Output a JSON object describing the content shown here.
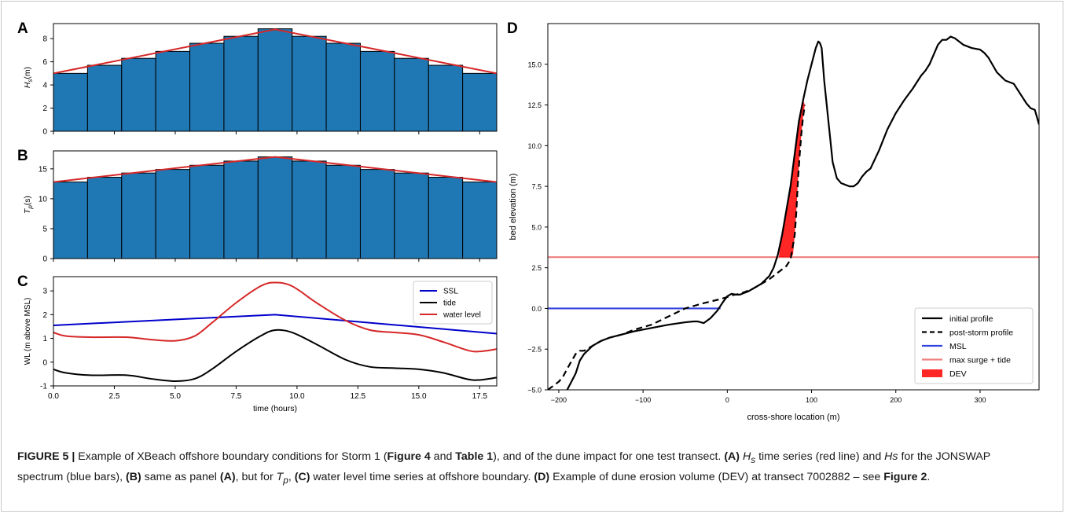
{
  "panel_letters": [
    "A",
    "B",
    "C",
    "D"
  ],
  "caption": {
    "figure_label": "FIGURE 5 |",
    "p1": " Example of XBeach offshore boundary conditions for Storm 1 (",
    "ref_fig4": "Figure 4",
    "p2": " and ",
    "ref_table1": "Table 1",
    "p3": "), and of the dune impact for one test transect. ",
    "lbl_a": "(A)",
    "hs_sym": "H",
    "hs_sub": "s",
    "p4": " time series (red line) and ",
    "hs_italic": "Hs",
    "p5": " for the JONSWAP spectrum (blue bars), ",
    "lbl_b": "(B)",
    "p6": " same as panel ",
    "lbl_a2": "(A)",
    "p7": ", but for ",
    "tp_sym": "T",
    "tp_sub": "p",
    "p8": ", ",
    "lbl_c": "(C)",
    "p9": " water level time series at offshore boundary. ",
    "lbl_d": "(D)",
    "p10": " Example of dune erosion volume (DEV) at transect 7002882 – see ",
    "ref_fig2": "Figure 2",
    "p11": "."
  },
  "chart_data": [
    {
      "panel": "A",
      "type": "bar",
      "ylabel_main": "H",
      "ylabel_sub": "s",
      "ylabel_unit": "(m)",
      "bar_values": [
        5.0,
        5.7,
        6.3,
        6.9,
        7.6,
        8.2,
        8.85,
        8.2,
        7.6,
        6.9,
        6.3,
        5.7,
        5.0
      ],
      "bar_color": "#1f77b4",
      "line_x": [
        0,
        9.1,
        18.2
      ],
      "line_y": [
        5.0,
        8.8,
        5.0
      ],
      "line_color": "#d62728",
      "xlim": [
        0,
        18.2
      ],
      "ylim": [
        0,
        9.3
      ],
      "yticks": [
        0,
        2,
        4,
        6,
        8
      ]
    },
    {
      "panel": "B",
      "type": "bar",
      "ylabel_main": "T",
      "ylabel_sub": "p",
      "ylabel_unit": "(s)",
      "bar_values": [
        12.8,
        13.6,
        14.3,
        14.9,
        15.6,
        16.3,
        17.0,
        16.3,
        15.6,
        14.9,
        14.3,
        13.6,
        12.8
      ],
      "bar_color": "#1f77b4",
      "line_x": [
        0,
        9.1,
        18.2
      ],
      "line_y": [
        12.8,
        17.0,
        12.8
      ],
      "line_color": "#d62728",
      "xlim": [
        0,
        18.2
      ],
      "ylim": [
        0,
        18
      ],
      "yticks": [
        0,
        5,
        10,
        15
      ]
    },
    {
      "panel": "C",
      "type": "line",
      "xlabel": "time (hours)",
      "ylabel": "WL (m above MSL)",
      "xlim": [
        0,
        18.2
      ],
      "ylim": [
        -1.0,
        3.6
      ],
      "xticks": [
        0,
        2.5,
        5,
        7.5,
        10,
        12.5,
        15,
        17.5
      ],
      "xticklabels": [
        "0.0",
        "2.5",
        "5.0",
        "7.5",
        "10.0",
        "12.5",
        "15.0",
        "17.5"
      ],
      "yticks": [
        -1,
        0,
        1,
        2,
        3
      ],
      "legend": "top-right",
      "series": [
        {
          "name": "SSL",
          "color": "#0000cc",
          "x": [
            0,
            9.1,
            18.2
          ],
          "y": [
            1.55,
            2.0,
            1.2
          ]
        },
        {
          "name": "tide",
          "color": "#000000",
          "x": [
            0,
            0.5,
            1.5,
            3.0,
            4.0,
            5.0,
            5.8,
            6.5,
            7.5,
            8.5,
            9.1,
            9.8,
            10.8,
            12.0,
            13.0,
            14.0,
            15.0,
            16.0,
            17.0,
            17.5,
            18.2
          ],
          "y": [
            -0.3,
            -0.45,
            -0.55,
            -0.55,
            -0.7,
            -0.8,
            -0.7,
            -0.3,
            0.45,
            1.1,
            1.35,
            1.25,
            0.75,
            0.1,
            -0.2,
            -0.25,
            -0.3,
            -0.45,
            -0.72,
            -0.75,
            -0.65
          ]
        },
        {
          "name": "water level",
          "color": "#d62728",
          "x": [
            0,
            0.5,
            1.5,
            3.0,
            4.0,
            5.0,
            5.8,
            6.5,
            7.5,
            8.5,
            9.1,
            9.8,
            10.8,
            12.0,
            13.0,
            14.0,
            15.0,
            16.0,
            17.0,
            17.5,
            18.2
          ],
          "y": [
            1.25,
            1.1,
            1.05,
            1.05,
            0.95,
            0.9,
            1.1,
            1.65,
            2.5,
            3.2,
            3.35,
            3.2,
            2.5,
            1.75,
            1.35,
            1.25,
            1.15,
            0.85,
            0.5,
            0.45,
            0.55
          ]
        }
      ]
    },
    {
      "panel": "D",
      "type": "line",
      "xlabel": "cross-shore location (m)",
      "ylabel": "bed elevation (m)",
      "xlim": [
        -213,
        370
      ],
      "ylim": [
        -5.0,
        17.5
      ],
      "xticks": [
        -200,
        -100,
        0,
        100,
        200,
        300
      ],
      "xticklabels": [
        "−200",
        "−100",
        "0",
        "100",
        "200",
        "300"
      ],
      "yticks": [
        -5,
        -2.5,
        0,
        2.5,
        5,
        7.5,
        10,
        12.5,
        15
      ],
      "yticklabels": [
        "−5.0",
        "−2.5",
        "0.0",
        "2.5",
        "5.0",
        "7.5",
        "10.0",
        "12.5",
        "15.0"
      ],
      "legend": "bottom-right",
      "series": [
        {
          "name": "initial profile",
          "color": "#000000",
          "style": "solid",
          "x": [
            -190,
            -180,
            -175,
            -170,
            -160,
            -150,
            -140,
            -125,
            -110,
            -90,
            -70,
            -50,
            -40,
            -35,
            -28,
            -20,
            -12,
            -5,
            0,
            5,
            10,
            15,
            20,
            25,
            30,
            40,
            50,
            55,
            60,
            65,
            70,
            75,
            80,
            85,
            90,
            95,
            100,
            105,
            108,
            110,
            112,
            115,
            120,
            125,
            130,
            135,
            140,
            145,
            150,
            155,
            160,
            165,
            170,
            180,
            190,
            200,
            210,
            220,
            230,
            235,
            240,
            245,
            250,
            255,
            260,
            265,
            270,
            280,
            290,
            300,
            305,
            310,
            320,
            330,
            340,
            350,
            355,
            360,
            365,
            370
          ],
          "y": [
            -5.0,
            -4.0,
            -3.2,
            -2.8,
            -2.3,
            -2.0,
            -1.8,
            -1.6,
            -1.4,
            -1.2,
            -1.0,
            -0.85,
            -0.8,
            -0.8,
            -0.9,
            -0.6,
            -0.15,
            0.4,
            0.75,
            0.9,
            0.85,
            0.85,
            0.95,
            1.05,
            1.2,
            1.5,
            2.0,
            2.5,
            3.3,
            4.5,
            6.0,
            7.5,
            9.5,
            11.5,
            12.8,
            14.0,
            15.0,
            16.0,
            16.4,
            16.3,
            16.0,
            14.0,
            11.5,
            9.0,
            8.0,
            7.7,
            7.6,
            7.5,
            7.5,
            7.7,
            8.1,
            8.4,
            8.6,
            9.7,
            11.0,
            12.0,
            12.8,
            13.5,
            14.3,
            14.6,
            15.0,
            15.6,
            16.2,
            16.5,
            16.5,
            16.7,
            16.6,
            16.2,
            16.0,
            15.9,
            15.7,
            15.4,
            14.5,
            14.0,
            13.8,
            13.0,
            12.6,
            12.3,
            12.2,
            11.3
          ]
        },
        {
          "name": "post-storm profile",
          "color": "#000000",
          "style": "dashed",
          "x": [
            -213,
            -200,
            -195,
            -190,
            -180,
            -175,
            -170,
            -160,
            -150,
            -140,
            -125,
            -110,
            -90,
            -70,
            -50,
            -30,
            -10,
            0,
            5,
            10,
            15,
            20,
            30,
            40,
            50,
            55,
            60,
            65,
            70,
            75,
            80,
            82,
            84,
            86,
            88,
            90,
            92
          ],
          "y": [
            -5.0,
            -4.5,
            -4.2,
            -3.7,
            -2.8,
            -2.6,
            -2.6,
            -2.3,
            -2.0,
            -1.8,
            -1.6,
            -1.3,
            -1.0,
            -0.5,
            0.0,
            0.3,
            0.55,
            0.7,
            0.8,
            0.85,
            0.9,
            1.0,
            1.2,
            1.5,
            1.8,
            2.0,
            2.2,
            2.4,
            2.6,
            3.0,
            4.5,
            6.0,
            8.0,
            9.5,
            10.8,
            11.8,
            12.5
          ]
        },
        {
          "name": "MSL",
          "color": "#3344dd",
          "x": [
            -213,
            -8
          ],
          "y": [
            0,
            0
          ]
        },
        {
          "name": "max surge + tide",
          "color": "#f08080",
          "x": [
            -213,
            370
          ],
          "y": [
            3.15,
            3.15
          ]
        },
        {
          "name": "DEV",
          "color": "#ff0000",
          "fill": true,
          "x": [
            61,
            65,
            70,
            75,
            80,
            85,
            90,
            92,
            90,
            88,
            86,
            84,
            82,
            80,
            78,
            75,
            70,
            65,
            61
          ],
          "y": [
            3.15,
            4.5,
            6.0,
            7.5,
            9.5,
            11.5,
            12.8,
            12.5,
            11.8,
            10.8,
            9.5,
            8.0,
            6.0,
            4.5,
            3.3,
            3.15,
            3.15,
            3.15,
            3.15
          ]
        }
      ]
    }
  ]
}
